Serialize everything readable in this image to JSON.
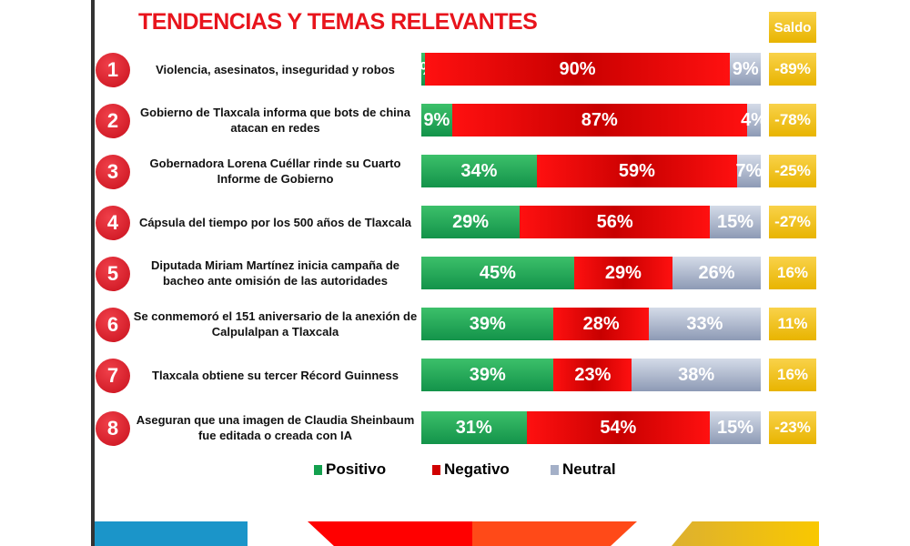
{
  "chart_data": {
    "type": "bar",
    "stacked": true,
    "orientation": "horizontal",
    "title": "TENDENCIAS Y TEMAS RELEVANTES",
    "saldo_header": "Saldo",
    "categories": [
      "Violencia, asesinatos, inseguridad y robos",
      "Gobierno de Tlaxcala informa que bots de china atacan en redes",
      "Gobernadora Lorena Cuéllar rinde su Cuarto Informe de Gobierno",
      "Cápsula del tiempo por los 500 años de Tlaxcala",
      "Diputada Miriam Martínez inicia campaña de bacheo ante omisión de las autoridades",
      "Se conmemoró el 151 aniversario de la anexión de Calpulalpan a Tlaxcala",
      "Tlaxcala obtiene su tercer Récord Guinness",
      "Aseguran que una imagen de Claudia Sheinbaum fue editada o creada con IA"
    ],
    "numbers": [
      "1",
      "2",
      "3",
      "4",
      "5",
      "6",
      "7",
      "8"
    ],
    "series": [
      {
        "name": "Positivo",
        "color": "#13a04e",
        "values": [
          1,
          9,
          34,
          29,
          45,
          39,
          39,
          31
        ]
      },
      {
        "name": "Negativo",
        "color": "#e00000",
        "values": [
          90,
          87,
          59,
          56,
          29,
          28,
          23,
          54
        ]
      },
      {
        "name": "Neutral",
        "color": "#a4b0c8",
        "values": [
          9,
          4,
          7,
          15,
          26,
          33,
          38,
          15
        ]
      }
    ],
    "saldo": [
      "-89%",
      "-78%",
      "-25%",
      "-27%",
      "16%",
      "11%",
      "16%",
      "-23%"
    ],
    "xlim": [
      0,
      100
    ]
  }
}
